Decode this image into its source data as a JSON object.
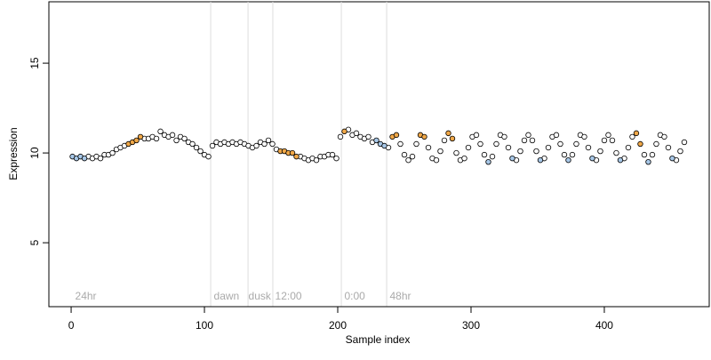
{
  "chart_data": {
    "type": "scatter",
    "x_label": "Sample index",
    "y_label": "Expression",
    "xlim": [
      -16.7,
      478.7
    ],
    "ylim": [
      1.44,
      18.42
    ],
    "xticks": [
      0,
      100,
      200,
      300,
      400
    ],
    "yticks": [
      5,
      10,
      15
    ],
    "grid": false,
    "vlines": [
      104.7,
      132.7,
      151.3,
      202.7,
      236.7
    ],
    "vline_color": "#dddddd",
    "annotation_color": "#aaaaaa",
    "annotations": [
      {
        "text": "24hr",
        "x": 3,
        "y": 2
      },
      {
        "text": "dawn",
        "x": 107,
        "y": 2
      },
      {
        "text": "dusk",
        "x": 133,
        "y": 2
      },
      {
        "text": "12:00",
        "x": 153,
        "y": 2
      },
      {
        "text": "0:00",
        "x": 205,
        "y": 2
      },
      {
        "text": "48hr",
        "x": 239,
        "y": 2
      }
    ],
    "series": [
      {
        "color": "#ffffff",
        "x": [
          13,
          16,
          19,
          22,
          25,
          28,
          31,
          34,
          37,
          40,
          55,
          58,
          61,
          64,
          67,
          70,
          73,
          76,
          79,
          82,
          85,
          88,
          91,
          94,
          97,
          100,
          103,
          106,
          109,
          112,
          115,
          118,
          121,
          124,
          127,
          130,
          133,
          136,
          139,
          142,
          145,
          148,
          151,
          154,
          172,
          175,
          178,
          181,
          184,
          187,
          190,
          193,
          196,
          199,
          202,
          208,
          211,
          214,
          217,
          220,
          223,
          226,
          238,
          247,
          250,
          253,
          256,
          259,
          268,
          271,
          274,
          277,
          280,
          289,
          292,
          295,
          298,
          301,
          304,
          307,
          310,
          316,
          319,
          322,
          325,
          328,
          334,
          337,
          340,
          343,
          346,
          349,
          355,
          358,
          361,
          364,
          367,
          370,
          376,
          379,
          382,
          385,
          388,
          394,
          397,
          400,
          403,
          406,
          409,
          415,
          418,
          421,
          430,
          436,
          439,
          442,
          445,
          448,
          454,
          457,
          460
        ],
        "values": [
          9.8,
          9.7,
          9.8,
          9.7,
          9.9,
          9.9,
          10.0,
          10.2,
          10.3,
          10.4,
          10.8,
          10.8,
          10.9,
          10.8,
          11.2,
          11.0,
          10.9,
          11.0,
          10.7,
          10.9,
          10.8,
          10.6,
          10.5,
          10.3,
          10.1,
          9.9,
          9.8,
          10.4,
          10.6,
          10.5,
          10.6,
          10.5,
          10.6,
          10.5,
          10.6,
          10.5,
          10.4,
          10.3,
          10.4,
          10.6,
          10.5,
          10.7,
          10.5,
          10.2,
          9.8,
          9.7,
          9.6,
          9.7,
          9.6,
          9.8,
          9.8,
          9.9,
          9.9,
          9.7,
          10.9,
          11.3,
          11.0,
          11.1,
          10.9,
          10.8,
          10.9,
          10.6,
          10.3,
          10.5,
          9.9,
          9.6,
          9.8,
          10.5,
          10.3,
          9.7,
          9.6,
          10.1,
          10.7,
          10.0,
          9.6,
          9.7,
          10.3,
          10.9,
          11.0,
          10.5,
          9.9,
          9.8,
          10.5,
          11.0,
          10.9,
          10.3,
          9.6,
          10.1,
          10.7,
          11.0,
          10.7,
          10.1,
          9.7,
          10.3,
          10.9,
          11.0,
          10.5,
          9.9,
          9.9,
          10.5,
          11.0,
          10.9,
          10.3,
          9.6,
          10.1,
          10.7,
          11.0,
          10.7,
          10.0,
          9.7,
          10.3,
          10.9,
          9.9,
          9.9,
          10.5,
          11.0,
          10.9,
          10.3,
          9.6,
          10.1,
          10.6
        ]
      },
      {
        "color": "#f0a848",
        "x": [
          43,
          46,
          49,
          52,
          157,
          160,
          163,
          166,
          169,
          205,
          241,
          244,
          262,
          265,
          283,
          286,
          424,
          427
        ],
        "values": [
          10.5,
          10.6,
          10.7,
          10.9,
          10.1,
          10.1,
          10.0,
          10.0,
          9.8,
          11.2,
          10.9,
          11.0,
          11.0,
          10.9,
          11.1,
          10.8,
          11.1,
          10.5
        ]
      },
      {
        "color": "#a8c8e8",
        "x": [
          1,
          4,
          7,
          10,
          229,
          232,
          235,
          313,
          331,
          352,
          373,
          391,
          412,
          433,
          451
        ],
        "values": [
          9.8,
          9.7,
          9.8,
          9.7,
          10.7,
          10.5,
          10.4,
          9.5,
          9.7,
          9.6,
          9.6,
          9.7,
          9.6,
          9.5,
          9.7
        ]
      }
    ]
  }
}
